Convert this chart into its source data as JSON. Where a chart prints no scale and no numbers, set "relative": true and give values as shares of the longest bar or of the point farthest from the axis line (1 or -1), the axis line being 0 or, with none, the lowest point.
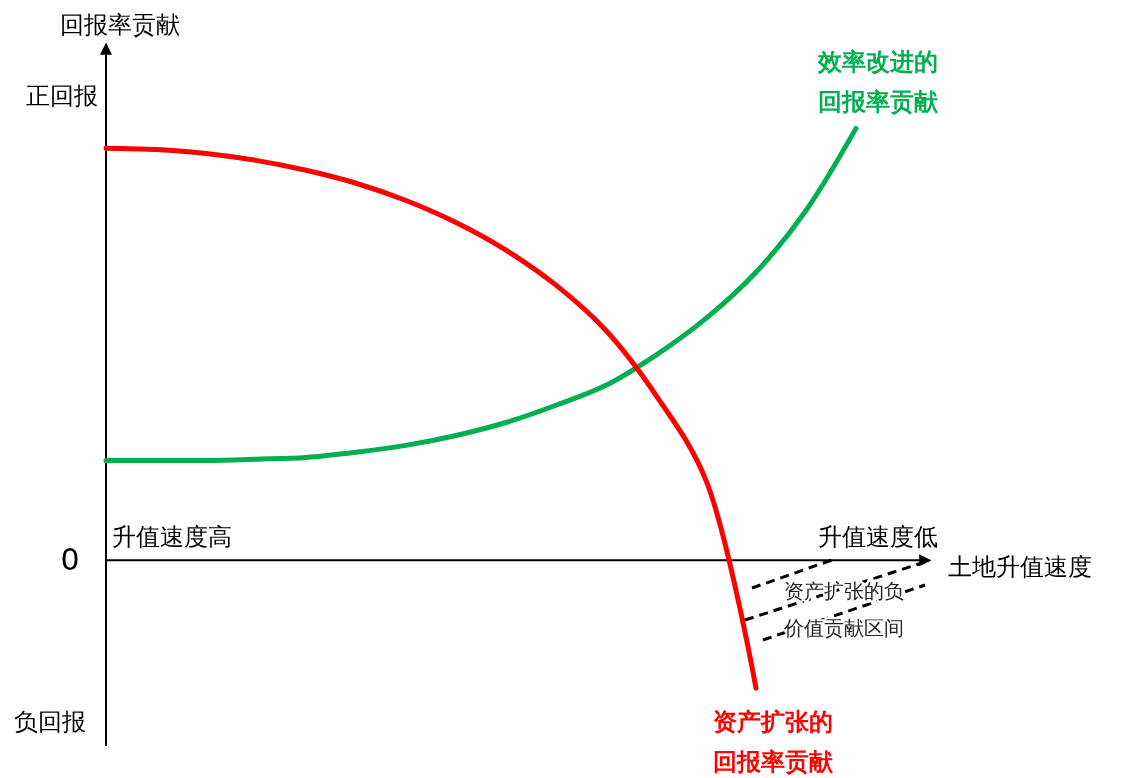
{
  "chart_data": {
    "type": "line",
    "relative": true,
    "xlabel": "土地升值速度",
    "ylabel": "回报率贡献",
    "categories": [
      null,
      null,
      null,
      null,
      null,
      null,
      null,
      null,
      null,
      null,
      null,
      null,
      null,
      null,
      null,
      null,
      null
    ],
    "series": [
      {
        "name": "效率改进的回报率贡献",
        "color": "#00b050",
        "values": [
          0.231,
          0.231,
          0.231,
          0.234,
          0.238,
          0.25,
          0.266,
          0.289,
          0.319,
          0.359,
          0.405,
          0.475,
          0.56,
          0.667,
          0.81,
          1,
          null
        ]
      },
      {
        "name": "资产扩张的回报率贡献",
        "color": "#ff0000",
        "values": [
          0.954,
          0.951,
          0.942,
          0.926,
          0.903,
          0.873,
          0.833,
          0.782,
          0.718,
          0.637,
          0.532,
          0.382,
          0.185,
          -0.296,
          null,
          null,
          null
        ]
      }
    ],
    "annotations": [
      "正回报",
      "0",
      "负回报",
      "升值速度高",
      "升值速度低",
      "资产扩张的负价值贡献区间"
    ],
    "legend": false
  }
}
